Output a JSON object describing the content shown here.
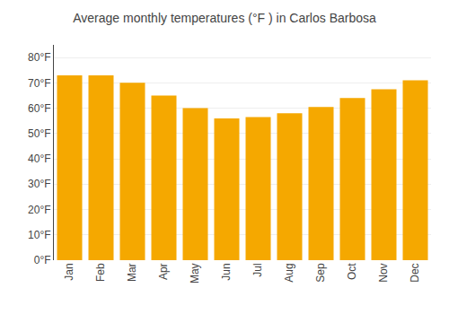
{
  "chart_data": {
    "type": "bar",
    "title": "Average monthly temperatures (°F ) in Carlos Barbosa",
    "categories": [
      "Jan",
      "Feb",
      "Mar",
      "Apr",
      "May",
      "Jun",
      "Jul",
      "Aug",
      "Sep",
      "Oct",
      "Nov",
      "Dec"
    ],
    "values": [
      73,
      73,
      70,
      65,
      60,
      56,
      56.5,
      58,
      60.5,
      64,
      67.5,
      71
    ],
    "color": "#F5A800",
    "ylim": [
      0,
      85
    ],
    "yticks": [
      {
        "value": 0,
        "label": "0°F"
      },
      {
        "value": 10,
        "label": "10°F"
      },
      {
        "value": 20,
        "label": "20°F"
      },
      {
        "value": 30,
        "label": "30°F"
      },
      {
        "value": 40,
        "label": "40°F"
      },
      {
        "value": 50,
        "label": "50°F"
      },
      {
        "value": 60,
        "label": "60°F"
      },
      {
        "value": 70,
        "label": "70°F"
      },
      {
        "value": 80,
        "label": "80°F"
      }
    ],
    "grid": true
  }
}
